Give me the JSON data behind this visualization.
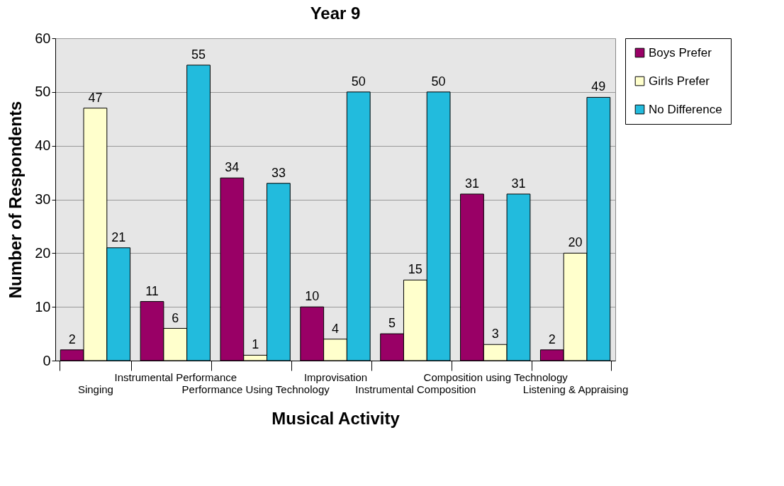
{
  "chart_data": {
    "type": "bar",
    "title": "Year 9",
    "xlabel": "Musical Activity",
    "ylabel": "Number of Respondents",
    "categories": [
      "Singing",
      "Instrumental Performance",
      "Performance Using Technology",
      "Improvisation",
      "Instrumental Composition",
      "Composition using Technology",
      "Listening & Appraising"
    ],
    "series": [
      {
        "name": "Boys Prefer",
        "color": "#990066",
        "values": [
          2,
          11,
          34,
          10,
          5,
          31,
          2
        ]
      },
      {
        "name": "Girls Prefer",
        "color": "#ffffcc",
        "values": [
          47,
          6,
          1,
          4,
          15,
          3,
          20
        ]
      },
      {
        "name": "No Difference",
        "color": "#22bbdd",
        "values": [
          21,
          55,
          33,
          50,
          50,
          31,
          49
        ]
      }
    ],
    "ylim": [
      0,
      60
    ],
    "yticks": [
      0,
      10,
      20,
      30,
      40,
      50,
      60
    ],
    "grid": "y",
    "legend": "right",
    "data_labels": true
  }
}
